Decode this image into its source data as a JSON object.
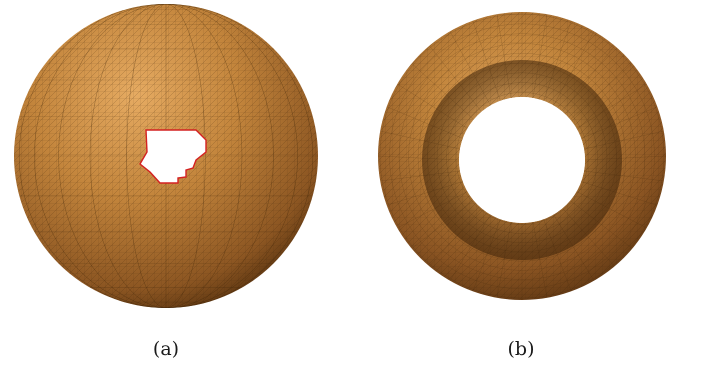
{
  "panels": [
    {
      "id": "a",
      "caption": "(a)",
      "shape": "sphere-with-hole"
    },
    {
      "id": "b",
      "caption": "(b)",
      "shape": "torus"
    }
  ],
  "colors": {
    "surface_light": "#e1a35a",
    "surface_mid": "#b87a33",
    "surface_dark": "#5a3410",
    "mesh_line": "#3b2308",
    "hole_boundary": "#d42020",
    "background": "#ffffff"
  }
}
